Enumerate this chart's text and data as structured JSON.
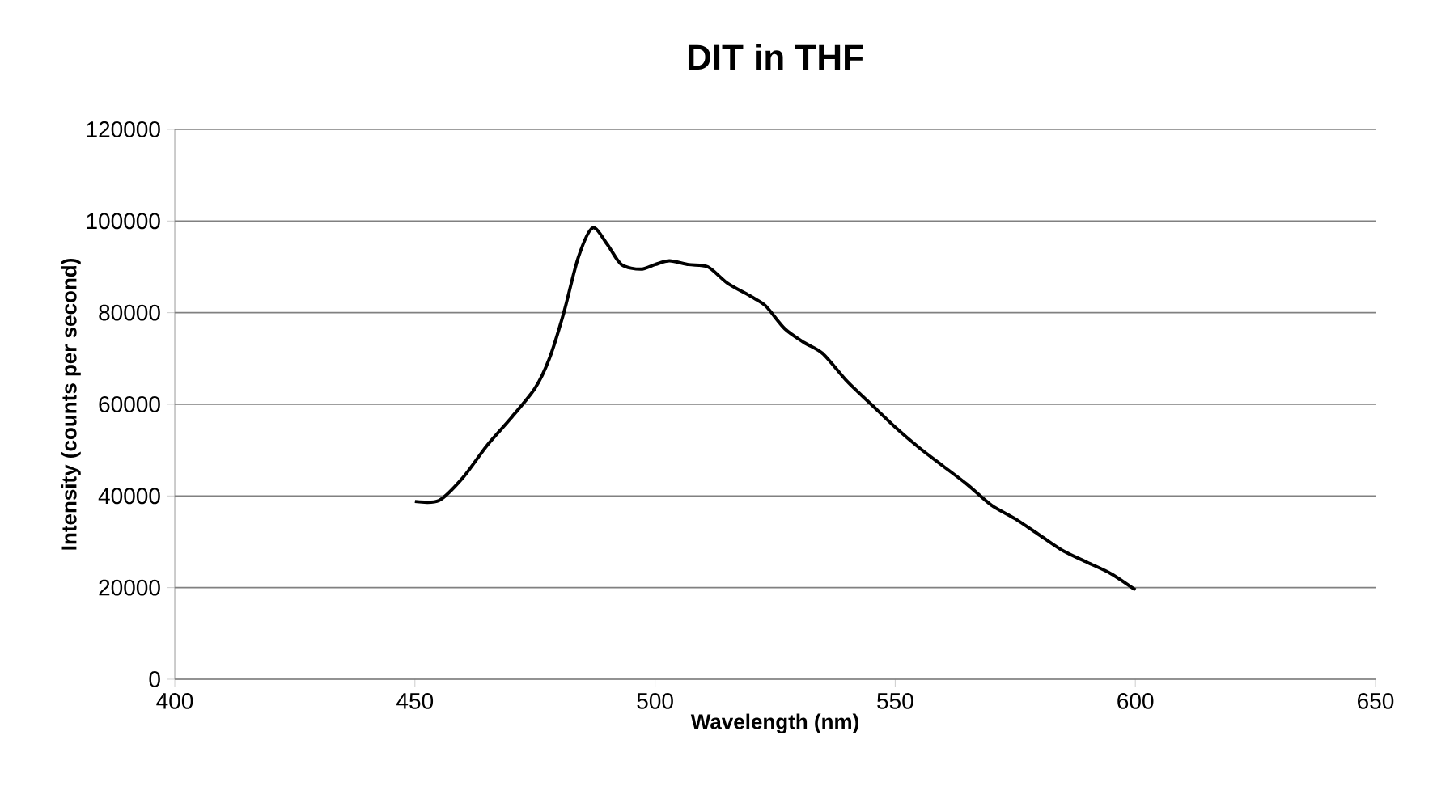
{
  "chart_data": {
    "type": "line",
    "title": "DIT in THF",
    "xlabel": "Wavelength (nm)",
    "ylabel": "Intensity (counts per second)",
    "xlim": [
      400,
      650
    ],
    "xticks": [
      400,
      450,
      500,
      550,
      600,
      650
    ],
    "ylim": [
      0,
      120000
    ],
    "yticks": [
      0,
      20000,
      40000,
      60000,
      80000,
      100000,
      120000
    ],
    "grid": "y",
    "marker": "none",
    "line_style": "solid",
    "series": [
      {
        "color": "#000000",
        "x": [
          450,
          455,
          460,
          465,
          470,
          475,
          478,
          481,
          484,
          487,
          490,
          493,
          497,
          500,
          503,
          507,
          511,
          515,
          520,
          523,
          527,
          531,
          535,
          540,
          545,
          550,
          555,
          560,
          565,
          570,
          575,
          580,
          585,
          590,
          595,
          600
        ],
        "values": [
          38800,
          39000,
          44000,
          51000,
          57000,
          63500,
          70000,
          80000,
          92000,
          98500,
          95000,
          90500,
          89500,
          90500,
          91300,
          90500,
          90000,
          86500,
          83500,
          81500,
          76500,
          73500,
          71000,
          65000,
          60000,
          55000,
          50500,
          46500,
          42500,
          38000,
          35000,
          31500,
          28000,
          25500,
          23000,
          19500
        ]
      }
    ]
  }
}
